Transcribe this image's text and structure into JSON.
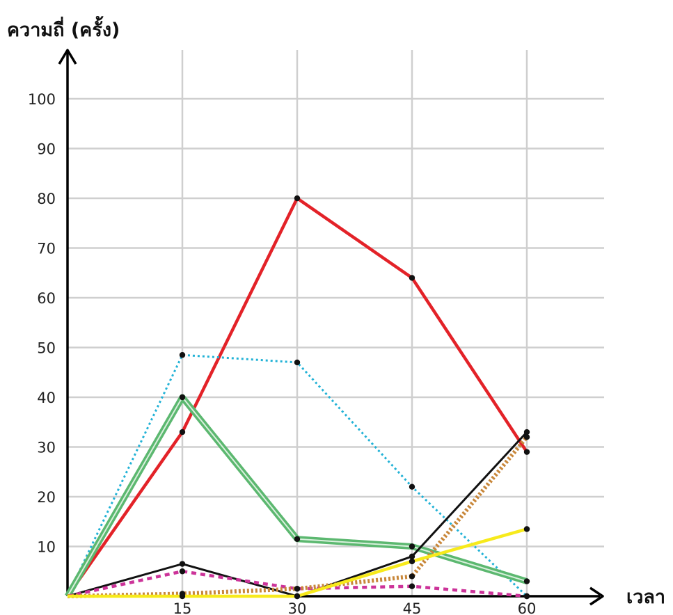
{
  "chart_data": {
    "type": "line",
    "title": "",
    "ylabel": "ความถี่ (ครั้ง)",
    "xlabel": "เวลา",
    "x": [
      0,
      15,
      30,
      45,
      60
    ],
    "x_ticks": [
      "15",
      "30",
      "45",
      "60"
    ],
    "y_ticks": [
      "10",
      "20",
      "30",
      "40",
      "50",
      "60",
      "70",
      "80",
      "90",
      "100"
    ],
    "xlim": [
      0,
      70
    ],
    "ylim": [
      0,
      100
    ],
    "grid": true,
    "legend": "none",
    "series": [
      {
        "color": "#e32228",
        "style": "solid",
        "values": [
          0,
          33,
          80,
          64,
          29
        ]
      },
      {
        "color": "#22b2d6",
        "style": "dotted",
        "values": [
          0,
          48.5,
          47,
          22,
          0
        ]
      },
      {
        "color": "#5cb870",
        "style": "double",
        "values": [
          0,
          40,
          11.5,
          10,
          3
        ]
      },
      {
        "color": "#111111",
        "style": "solid-thin",
        "values": [
          0,
          6.5,
          0,
          8,
          33
        ]
      },
      {
        "color": "#cc3399",
        "style": "dashed",
        "values": [
          0,
          5,
          1.5,
          2,
          0
        ]
      },
      {
        "color": "#c8873a",
        "style": "thick-dotted",
        "values": [
          0,
          0.5,
          1.5,
          4,
          32
        ]
      },
      {
        "color": "#f7ea1c",
        "style": "solid",
        "values": [
          0,
          0,
          0,
          7,
          13.5
        ]
      }
    ]
  }
}
